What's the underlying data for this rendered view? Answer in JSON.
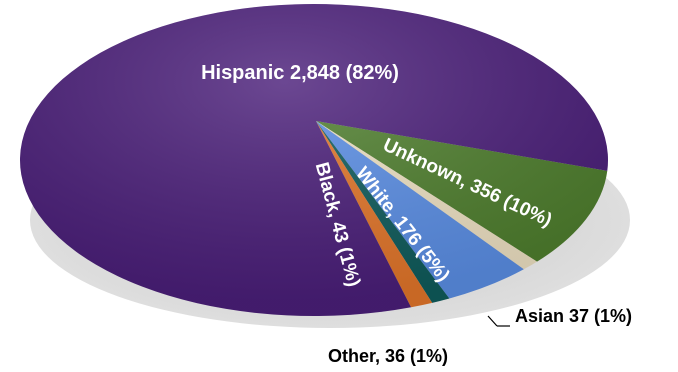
{
  "chart_data": {
    "type": "pie",
    "title": "",
    "slices": [
      {
        "name": "Hispanic",
        "value": 2848,
        "percent": 82,
        "label": "Hispanic 2,848 (82%)",
        "color": "#4b1f7a"
      },
      {
        "name": "Unknown",
        "value": 356,
        "percent": 10,
        "label": "Unknown, 356 (10%)",
        "color": "#4f7f2e"
      },
      {
        "name": "Asian",
        "value": 37,
        "percent": 1,
        "label": "Asian 37 (1%)",
        "color": "#efe2c4"
      },
      {
        "name": "White",
        "value": 176,
        "percent": 5,
        "label": "White, 176 (5%)",
        "color": "#5b8fe6"
      },
      {
        "name": "Other",
        "value": 36,
        "percent": 1,
        "label": "Other, 36 (1%)",
        "color": "#0f5c5c"
      },
      {
        "name": "Black",
        "value": 43,
        "percent": 1,
        "label": "Black, 43 (1%)",
        "color": "#e3762a"
      }
    ]
  }
}
